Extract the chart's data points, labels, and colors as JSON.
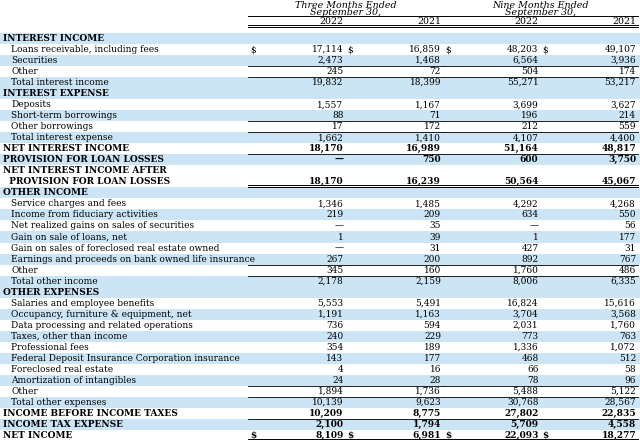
{
  "col_headers_3m": [
    "2022",
    "2021"
  ],
  "col_headers_9m": [
    "2022",
    "2021"
  ],
  "rows": [
    {
      "label": "INTEREST INCOME",
      "indent": 0,
      "bold": true,
      "values": [
        "",
        "",
        "",
        ""
      ],
      "dollar_sign": [
        false,
        false,
        false,
        false
      ],
      "bg": "blue_header"
    },
    {
      "label": "Loans receivable, including fees",
      "indent": 1,
      "bold": false,
      "values": [
        "17,114",
        "16,859",
        "48,203",
        "49,107"
      ],
      "dollar_sign": [
        true,
        true,
        true,
        true
      ],
      "bg": "white"
    },
    {
      "label": "Securities",
      "indent": 1,
      "bold": false,
      "values": [
        "2,473",
        "1,468",
        "6,564",
        "3,936"
      ],
      "dollar_sign": [
        false,
        false,
        false,
        false
      ],
      "bg": "light_blue"
    },
    {
      "label": "Other",
      "indent": 1,
      "bold": false,
      "values": [
        "245",
        "72",
        "504",
        "174"
      ],
      "dollar_sign": [
        false,
        false,
        false,
        false
      ],
      "bg": "white",
      "underline_above": true
    },
    {
      "label": "Total interest income",
      "indent": 1,
      "bold": false,
      "values": [
        "19,832",
        "18,399",
        "55,271",
        "53,217"
      ],
      "dollar_sign": [
        false,
        false,
        false,
        false
      ],
      "bg": "light_blue",
      "underline_above": true
    },
    {
      "label": "INTEREST EXPENSE",
      "indent": 0,
      "bold": true,
      "values": [
        "",
        "",
        "",
        ""
      ],
      "dollar_sign": [
        false,
        false,
        false,
        false
      ],
      "bg": "blue_header"
    },
    {
      "label": "Deposits",
      "indent": 1,
      "bold": false,
      "values": [
        "1,557",
        "1,167",
        "3,699",
        "3,627"
      ],
      "dollar_sign": [
        false,
        false,
        false,
        false
      ],
      "bg": "white"
    },
    {
      "label": "Short-term borrowings",
      "indent": 1,
      "bold": false,
      "values": [
        "88",
        "71",
        "196",
        "214"
      ],
      "dollar_sign": [
        false,
        false,
        false,
        false
      ],
      "bg": "light_blue"
    },
    {
      "label": "Other borrowings",
      "indent": 1,
      "bold": false,
      "values": [
        "17",
        "172",
        "212",
        "559"
      ],
      "dollar_sign": [
        false,
        false,
        false,
        false
      ],
      "bg": "white",
      "underline_above": true
    },
    {
      "label": "Total interest expense",
      "indent": 1,
      "bold": false,
      "values": [
        "1,662",
        "1,410",
        "4,107",
        "4,400"
      ],
      "dollar_sign": [
        false,
        false,
        false,
        false
      ],
      "bg": "light_blue",
      "underline_above": true
    },
    {
      "label": "NET INTEREST INCOME",
      "indent": 0,
      "bold": true,
      "values": [
        "18,170",
        "16,989",
        "51,164",
        "48,817"
      ],
      "dollar_sign": [
        false,
        false,
        false,
        false
      ],
      "bg": "white"
    },
    {
      "label": "PROVISION FOR LOAN LOSSES",
      "indent": 0,
      "bold": true,
      "values": [
        "—",
        "750",
        "600",
        "3,750"
      ],
      "dollar_sign": [
        false,
        false,
        false,
        false
      ],
      "bg": "light_blue",
      "underline_above": true
    },
    {
      "label": "NET INTEREST INCOME AFTER",
      "indent": 0,
      "bold": true,
      "values": [
        "",
        "",
        "",
        ""
      ],
      "dollar_sign": [
        false,
        false,
        false,
        false
      ],
      "bg": "white"
    },
    {
      "label": "  PROVISION FOR LOAN LOSSES",
      "indent": 0,
      "bold": true,
      "values": [
        "18,170",
        "16,239",
        "50,564",
        "45,067"
      ],
      "dollar_sign": [
        false,
        false,
        false,
        false
      ],
      "bg": "white",
      "double_underline": true
    },
    {
      "label": "OTHER INCOME",
      "indent": 0,
      "bold": true,
      "values": [
        "",
        "",
        "",
        ""
      ],
      "dollar_sign": [
        false,
        false,
        false,
        false
      ],
      "bg": "blue_header"
    },
    {
      "label": "Service charges and fees",
      "indent": 1,
      "bold": false,
      "values": [
        "1,346",
        "1,485",
        "4,292",
        "4,268"
      ],
      "dollar_sign": [
        false,
        false,
        false,
        false
      ],
      "bg": "white"
    },
    {
      "label": "Income from fiduciary activities",
      "indent": 1,
      "bold": false,
      "values": [
        "219",
        "209",
        "634",
        "550"
      ],
      "dollar_sign": [
        false,
        false,
        false,
        false
      ],
      "bg": "light_blue"
    },
    {
      "label": "Net realized gains on sales of securities",
      "indent": 1,
      "bold": false,
      "values": [
        "—",
        "35",
        "—",
        "56"
      ],
      "dollar_sign": [
        false,
        false,
        false,
        false
      ],
      "bg": "white"
    },
    {
      "label": "Gain on sale of loans, net",
      "indent": 1,
      "bold": false,
      "values": [
        "1",
        "39",
        "1",
        "177"
      ],
      "dollar_sign": [
        false,
        false,
        false,
        false
      ],
      "bg": "light_blue"
    },
    {
      "label": "Gain on sales of foreclosed real estate owned",
      "indent": 1,
      "bold": false,
      "values": [
        "—",
        "31",
        "427",
        "31"
      ],
      "dollar_sign": [
        false,
        false,
        false,
        false
      ],
      "bg": "white"
    },
    {
      "label": "Earnings and proceeds on bank owned life insurance",
      "indent": 1,
      "bold": false,
      "values": [
        "267",
        "200",
        "892",
        "767"
      ],
      "dollar_sign": [
        false,
        false,
        false,
        false
      ],
      "bg": "light_blue"
    },
    {
      "label": "Other",
      "indent": 1,
      "bold": false,
      "values": [
        "345",
        "160",
        "1,760",
        "486"
      ],
      "dollar_sign": [
        false,
        false,
        false,
        false
      ],
      "bg": "white",
      "underline_above": true
    },
    {
      "label": "Total other income",
      "indent": 1,
      "bold": false,
      "values": [
        "2,178",
        "2,159",
        "8,006",
        "6,335"
      ],
      "dollar_sign": [
        false,
        false,
        false,
        false
      ],
      "bg": "light_blue",
      "underline_above": true
    },
    {
      "label": "OTHER EXPENSES",
      "indent": 0,
      "bold": true,
      "values": [
        "",
        "",
        "",
        ""
      ],
      "dollar_sign": [
        false,
        false,
        false,
        false
      ],
      "bg": "blue_header"
    },
    {
      "label": "Salaries and employee benefits",
      "indent": 1,
      "bold": false,
      "values": [
        "5,553",
        "5,491",
        "16,824",
        "15,616"
      ],
      "dollar_sign": [
        false,
        false,
        false,
        false
      ],
      "bg": "white"
    },
    {
      "label": "Occupancy, furniture & equipment, net",
      "indent": 1,
      "bold": false,
      "values": [
        "1,191",
        "1,163",
        "3,704",
        "3,568"
      ],
      "dollar_sign": [
        false,
        false,
        false,
        false
      ],
      "bg": "light_blue"
    },
    {
      "label": "Data processing and related operations",
      "indent": 1,
      "bold": false,
      "values": [
        "736",
        "594",
        "2,031",
        "1,760"
      ],
      "dollar_sign": [
        false,
        false,
        false,
        false
      ],
      "bg": "white"
    },
    {
      "label": "Taxes, other than income",
      "indent": 1,
      "bold": false,
      "values": [
        "240",
        "229",
        "773",
        "763"
      ],
      "dollar_sign": [
        false,
        false,
        false,
        false
      ],
      "bg": "light_blue"
    },
    {
      "label": "Professional fees",
      "indent": 1,
      "bold": false,
      "values": [
        "354",
        "189",
        "1,336",
        "1,072"
      ],
      "dollar_sign": [
        false,
        false,
        false,
        false
      ],
      "bg": "white"
    },
    {
      "label": "Federal Deposit Insurance Corporation insurance",
      "indent": 1,
      "bold": false,
      "values": [
        "143",
        "177",
        "468",
        "512"
      ],
      "dollar_sign": [
        false,
        false,
        false,
        false
      ],
      "bg": "light_blue"
    },
    {
      "label": "Foreclosed real estate",
      "indent": 1,
      "bold": false,
      "values": [
        "4",
        "16",
        "66",
        "58"
      ],
      "dollar_sign": [
        false,
        false,
        false,
        false
      ],
      "bg": "white"
    },
    {
      "label": "Amortization of intangibles",
      "indent": 1,
      "bold": false,
      "values": [
        "24",
        "28",
        "78",
        "96"
      ],
      "dollar_sign": [
        false,
        false,
        false,
        false
      ],
      "bg": "light_blue"
    },
    {
      "label": "Other",
      "indent": 1,
      "bold": false,
      "values": [
        "1,894",
        "1,736",
        "5,488",
        "5,122"
      ],
      "dollar_sign": [
        false,
        false,
        false,
        false
      ],
      "bg": "white",
      "underline_above": true
    },
    {
      "label": "Total other expenses",
      "indent": 1,
      "bold": false,
      "values": [
        "10,139",
        "9,623",
        "30,768",
        "28,567"
      ],
      "dollar_sign": [
        false,
        false,
        false,
        false
      ],
      "bg": "light_blue",
      "underline_above": true
    },
    {
      "label": "INCOME BEFORE INCOME TAXES",
      "indent": 0,
      "bold": true,
      "values": [
        "10,209",
        "8,775",
        "27,802",
        "22,835"
      ],
      "dollar_sign": [
        false,
        false,
        false,
        false
      ],
      "bg": "white"
    },
    {
      "label": "INCOME TAX EXPENSE",
      "indent": 0,
      "bold": true,
      "values": [
        "2,100",
        "1,794",
        "5,709",
        "4,558"
      ],
      "dollar_sign": [
        false,
        false,
        false,
        false
      ],
      "bg": "light_blue",
      "underline_above": true
    },
    {
      "label": "NET INCOME",
      "indent": 0,
      "bold": true,
      "values": [
        "8,109",
        "6,981",
        "22,093",
        "18,277"
      ],
      "dollar_sign": [
        true,
        true,
        true,
        true
      ],
      "bg": "white",
      "double_underline": true
    }
  ],
  "color_light_blue": "#cce5f6",
  "color_blue_header": "#cce5f6",
  "color_white": "#ffffff",
  "font_size": 6.5,
  "header_font_size": 6.8,
  "fig_width": 6.4,
  "fig_height": 4.41,
  "dpi": 100
}
